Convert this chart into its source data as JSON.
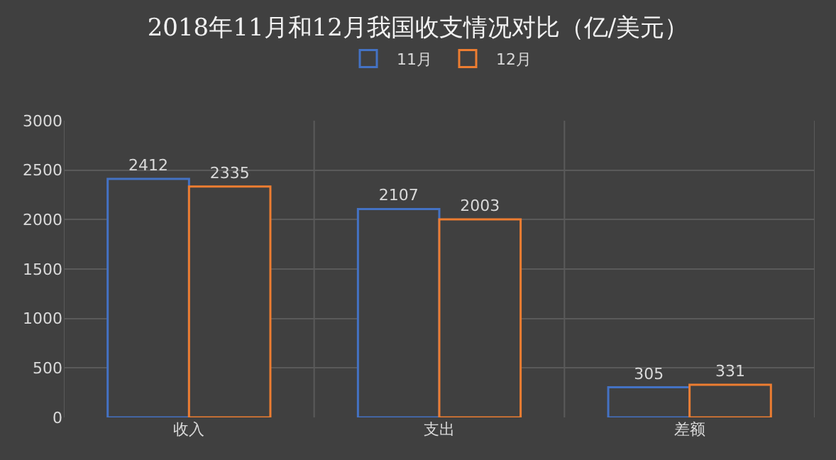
{
  "chart_data": {
    "type": "bar",
    "title": "2018年11月和12月我国收支情况对比（亿/美元）",
    "categories": [
      "收入",
      "支出",
      "差额"
    ],
    "series": [
      {
        "name": "11月",
        "color": "#4472c4",
        "values": [
          2412,
          2107,
          305
        ]
      },
      {
        "name": "12月",
        "color": "#ed7d31",
        "values": [
          2335,
          2003,
          331
        ]
      }
    ],
    "ylim": [
      0,
      3000
    ],
    "yticks": [
      0,
      500,
      1000,
      1500,
      2000,
      2500,
      3000
    ],
    "grid": true,
    "legend": "top",
    "data_labels": true
  }
}
